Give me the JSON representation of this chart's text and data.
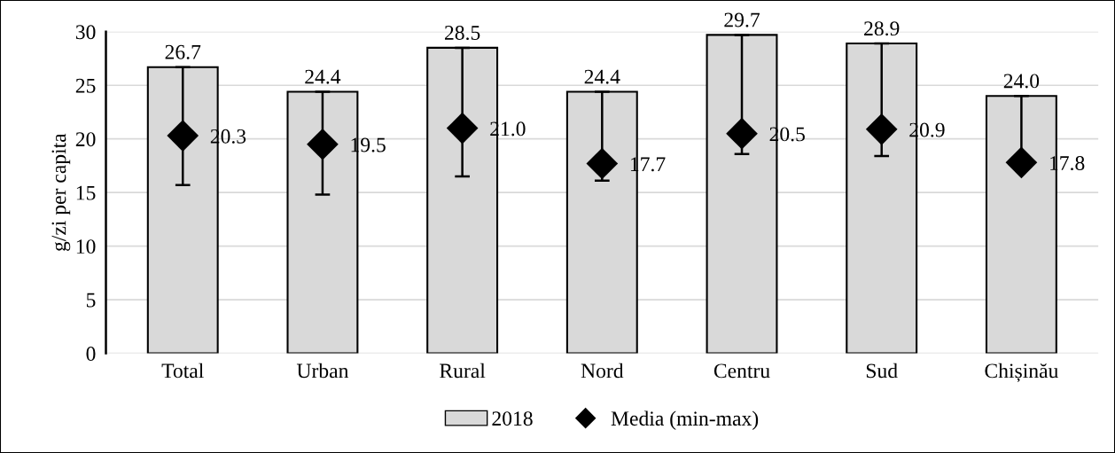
{
  "chart_data": {
    "type": "bar",
    "ylabel": "g/zi per capita",
    "categories": [
      "Total",
      "Urban",
      "Rural",
      "Nord",
      "Centru",
      "Sud",
      "Chișinău"
    ],
    "series": [
      {
        "name": "2018",
        "color": "#d9d9d9",
        "values": [
          26.7,
          24.4,
          28.5,
          24.4,
          29.7,
          28.9,
          24.0
        ],
        "value_labels": [
          "26.7",
          "24.4",
          "28.5",
          "24.4",
          "29.7",
          "28.9",
          "24.0"
        ]
      },
      {
        "name": "Media (min-max)",
        "type": "scatter",
        "color": "#000000",
        "marker": "diamond",
        "values": [
          20.3,
          19.5,
          21.0,
          17.7,
          20.5,
          20.9,
          17.8
        ],
        "value_labels": [
          "20.3",
          "19.5",
          "21.0",
          "17.7",
          "20.5",
          "20.9",
          "17.8"
        ],
        "errors": [
          [
            15.7,
            26.7
          ],
          [
            14.8,
            24.4
          ],
          [
            16.5,
            28.5
          ],
          [
            16.1,
            24.4
          ],
          [
            18.6,
            29.7
          ],
          [
            18.4,
            28.9
          ],
          [
            17.8,
            24.0
          ]
        ]
      }
    ],
    "ylim": [
      0,
      30
    ],
    "yticks": [
      0,
      5,
      10,
      15,
      20,
      25,
      30
    ],
    "grid": "y",
    "legend": "bottom"
  }
}
